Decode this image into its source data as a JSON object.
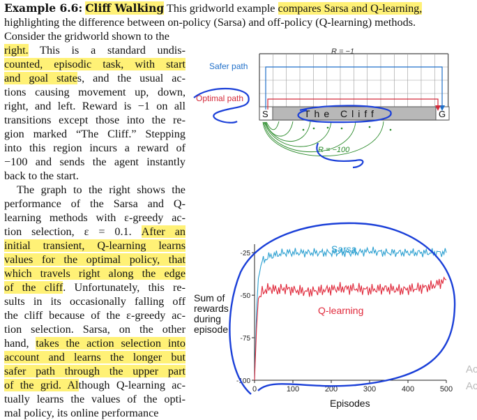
{
  "example": {
    "label": "Example 6.6:",
    "name": "Cliff Walking",
    "intro_rest": "This gridworld example",
    "intro_hl": "compares Sarsa and Q-learning,",
    "line2": "highlighting the difference between on-policy (Sarsa) and off-policy (Q-learning) methods.",
    "line3": "Consider the gridworld shown to the"
  },
  "para1": [
    "right.  This is a standard undis-",
    "counted, episodic task, with start",
    "and goal states, and the usual ac-",
    "tions causing movement up, down,",
    "right, and left. Reward is −1 on all",
    "transitions except those into the re-",
    "gion marked “The Cliff.” Stepping",
    "into this region incurs a reward of",
    "−100 and sends the agent instantly",
    "back to the start."
  ],
  "para2": [
    "The graph to the right shows the",
    "performance of the Sarsa and Q-",
    "learning methods with ε-greedy ac-",
    "tion selection, ε = 0.1.  After an",
    "initial transient, Q-learning learns",
    "values for the optimal policy, that",
    "which travels right along the edge",
    "of the cliff.  Unfortunately, this re-",
    "sults in its occasionally falling off",
    "the cliff because of the ε-greedy ac-",
    "tion selection.  Sarsa, on the other",
    "hand, takes the action selection into",
    "account and learns the longer but",
    "safer path through the upper part",
    "of the grid.  Although Q-learning ac-",
    "tually learns the values of the opti-",
    "mal policy, its online performance"
  ],
  "gridworld": {
    "reward_top": "R = −1",
    "safer_label": "Safer path",
    "optimal_label": "Optimal path",
    "start": "S",
    "goal": "G",
    "cliff": "The Cliff",
    "reward_cliff": "R = −100",
    "colors": {
      "safer": "#1f6fc9",
      "optimal": "#d42a3a",
      "cliff_fill": "#b8b8b8",
      "return_arrows": "#2a8a2a"
    }
  },
  "chart_data": {
    "type": "line",
    "ylabel": "Sum of rewards during episode",
    "ylabel_lines": [
      "Sum of",
      "rewards",
      "during",
      "episode"
    ],
    "xlabel": "Episodes",
    "xlim": [
      0,
      500
    ],
    "ylim": [
      -100,
      -20
    ],
    "xticks": [
      0,
      100,
      200,
      300,
      400,
      500
    ],
    "yticks": [
      -25,
      -50,
      -75,
      -100
    ],
    "ytick_labels": [
      "-25",
      "-50",
      "-75",
      "-100"
    ],
    "series": [
      {
        "name": "Sarsa",
        "color": "#2a9fd0",
        "x": [
          0,
          5,
          10,
          20,
          40,
          60,
          80,
          100,
          140,
          180,
          220,
          260,
          300,
          340,
          380,
          420,
          460,
          500
        ],
        "y": [
          -100,
          -60,
          -40,
          -30,
          -27,
          -26,
          -25,
          -25,
          -25,
          -25,
          -25,
          -25,
          -24,
          -25,
          -25,
          -25,
          -25,
          -25
        ]
      },
      {
        "name": "Q-learning",
        "color": "#e0283a",
        "x": [
          0,
          5,
          10,
          20,
          40,
          60,
          80,
          100,
          140,
          180,
          220,
          260,
          300,
          340,
          380,
          420,
          460,
          500
        ],
        "y": [
          -100,
          -70,
          -52,
          -48,
          -46,
          -47,
          -46,
          -47,
          -48,
          -47,
          -46,
          -46,
          -47,
          -46,
          -47,
          -46,
          -45,
          -41
        ]
      }
    ]
  },
  "side_fragments": [
    "Ac",
    "Ac"
  ]
}
